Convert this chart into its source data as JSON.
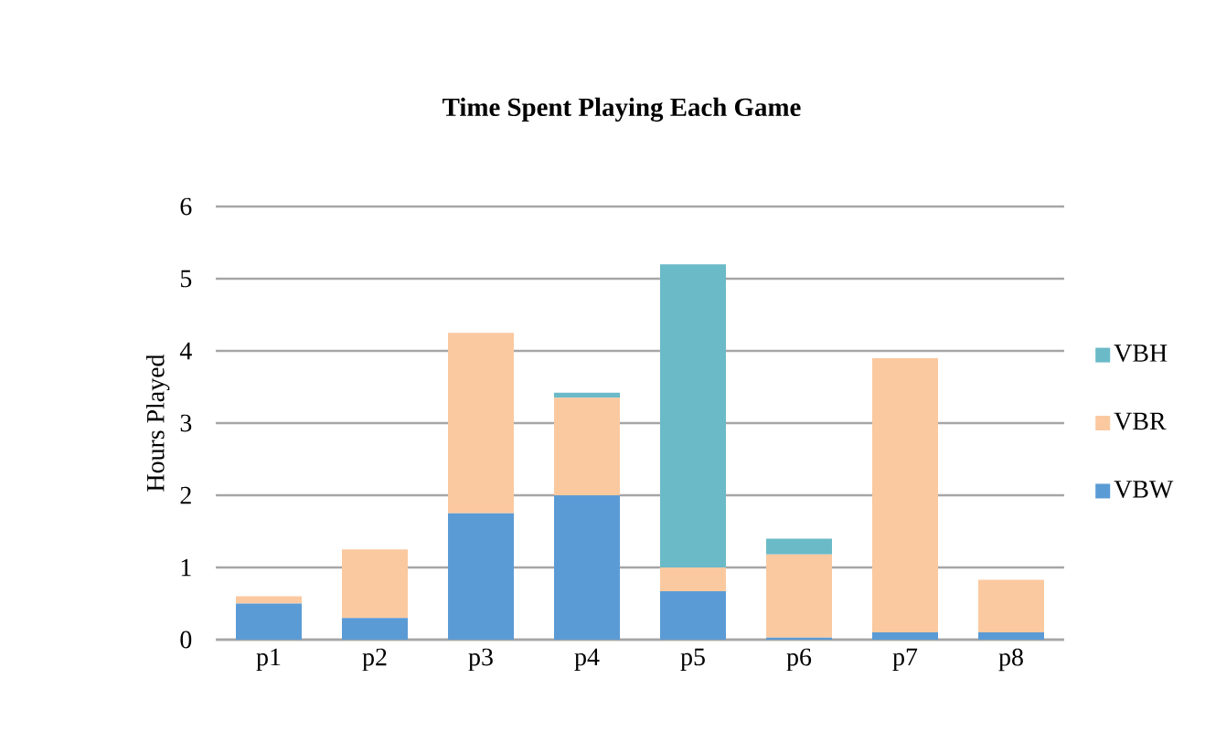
{
  "chart_data": {
    "type": "bar",
    "title": "Time Spent Playing Each Game",
    "ylabel": "Hours Played",
    "categories": [
      "p1",
      "p2",
      "p3",
      "p4",
      "p5",
      "p6",
      "p7",
      "p8"
    ],
    "stacked": true,
    "ylim": [
      0,
      6
    ],
    "yticks": [
      0,
      1,
      2,
      3,
      4,
      5,
      6
    ],
    "grid": "y",
    "legend": "right",
    "series": [
      {
        "name": "VBW",
        "color": "#5b9bd5",
        "values": [
          0.5,
          0.3,
          1.75,
          2.0,
          0.67,
          0.03,
          0.1,
          0.1
        ]
      },
      {
        "name": "VBR",
        "color": "#fbc9a0",
        "values": [
          0.1,
          0.95,
          2.5,
          1.35,
          0.33,
          1.15,
          3.8,
          0.73
        ]
      },
      {
        "name": "VBH",
        "color": "#6bbac8",
        "values": [
          0,
          0,
          0,
          0.07,
          4.2,
          0.22,
          0,
          0
        ]
      }
    ]
  }
}
